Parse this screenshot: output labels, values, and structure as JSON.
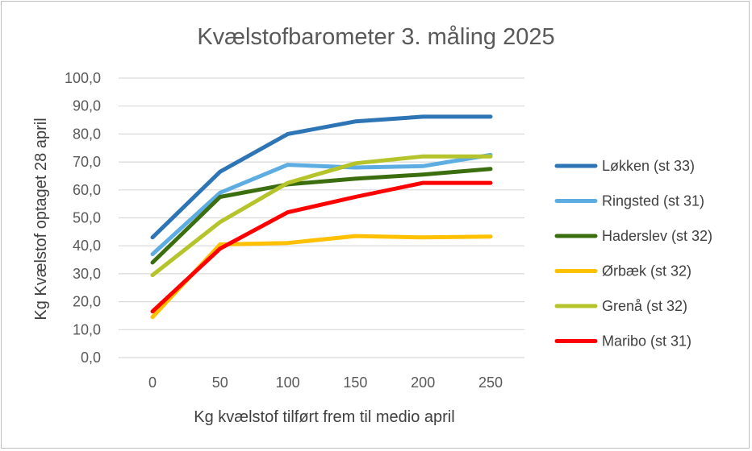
{
  "chart_data": {
    "type": "line",
    "title": "Kvælstofbarometer 3. måling 2025",
    "xlabel": "Kg kvælstof tilført frem til medio april",
    "ylabel": "Kg Kvælstof optaget 28 april",
    "x": [
      0,
      50,
      100,
      150,
      200,
      250
    ],
    "x_tick_labels": [
      "0",
      "50",
      "100",
      "150",
      "200",
      "250"
    ],
    "ylim": [
      0,
      100
    ],
    "y_ticks": [
      0,
      10,
      20,
      30,
      40,
      50,
      60,
      70,
      80,
      90,
      100
    ],
    "y_tick_labels": [
      "0,0",
      "10,0",
      "20,0",
      "30,0",
      "40,0",
      "50,0",
      "60,0",
      "70,0",
      "80,0",
      "90,0",
      "100,0"
    ],
    "grid": true,
    "legend_position": "right",
    "series": [
      {
        "name": "Løkken (st 33)",
        "color": "#2E75B6",
        "values": [
          43,
          66.5,
          80,
          84.5,
          86.2,
          86.2
        ]
      },
      {
        "name": "Ringsted (st 31)",
        "color": "#5DADE2",
        "values": [
          37,
          59,
          69,
          68,
          68.5,
          72.5
        ]
      },
      {
        "name": "Haderslev (st 32)",
        "color": "#3B6E0F",
        "values": [
          34,
          57.5,
          62,
          64,
          65.5,
          67.5
        ]
      },
      {
        "name": "Ørbæk (st 32)",
        "color": "#FFC000",
        "values": [
          14.5,
          40.5,
          41,
          43.5,
          43,
          43.3
        ]
      },
      {
        "name": "Grenå (st 32)",
        "color": "#B5C42B",
        "values": [
          29.5,
          48.5,
          62.5,
          69.5,
          72,
          72
        ]
      },
      {
        "name": "Maribo (st 31)",
        "color": "#FF0000",
        "values": [
          16.5,
          39,
          52,
          57.5,
          62.5,
          62.5
        ]
      }
    ]
  }
}
